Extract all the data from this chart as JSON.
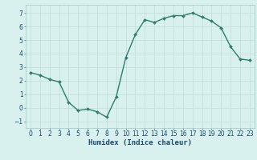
{
  "x": [
    0,
    1,
    2,
    3,
    4,
    5,
    6,
    7,
    8,
    9,
    10,
    11,
    12,
    13,
    14,
    15,
    16,
    17,
    18,
    19,
    20,
    21,
    22,
    23
  ],
  "y": [
    2.6,
    2.4,
    2.1,
    1.9,
    0.4,
    -0.2,
    -0.1,
    -0.3,
    -0.7,
    0.8,
    3.7,
    5.4,
    6.5,
    6.3,
    6.6,
    6.8,
    6.8,
    7.0,
    6.7,
    6.4,
    5.9,
    4.5,
    3.6,
    3.5
  ],
  "line_color": "#2e7d6e",
  "marker": "D",
  "marker_size": 2,
  "line_width": 1.0,
  "bg_color": "#d8f0ee",
  "grid_color": "#c0deda",
  "xlabel": "Humidex (Indice chaleur)",
  "xlabel_fontsize": 6.5,
  "xlabel_color": "#1a4a6e",
  "tick_label_color": "#1a4a6e",
  "tick_fontsize": 5.5,
  "ylim": [
    -1.5,
    7.6
  ],
  "xlim": [
    -0.5,
    23.5
  ],
  "yticks": [
    -1,
    0,
    1,
    2,
    3,
    4,
    5,
    6,
    7
  ],
  "xticks": [
    0,
    1,
    2,
    3,
    4,
    5,
    6,
    7,
    8,
    9,
    10,
    11,
    12,
    13,
    14,
    15,
    16,
    17,
    18,
    19,
    20,
    21,
    22,
    23
  ]
}
